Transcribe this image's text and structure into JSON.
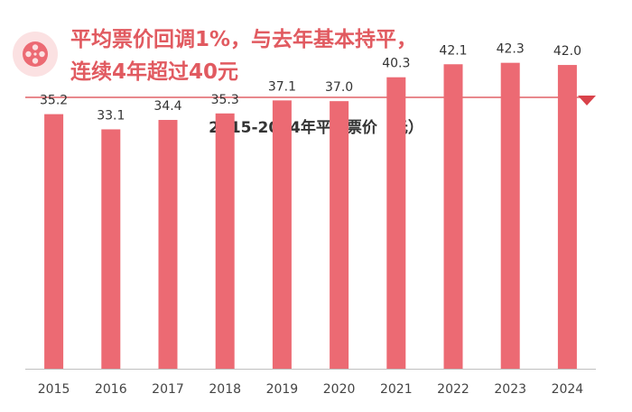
{
  "header": {
    "headline_line1": "平均票价回调1%，与去年基本持平，",
    "headline_line2": "连续4年超过40元",
    "icon": "film-reel-icon",
    "accent_color": "#e15a60"
  },
  "chart_data": {
    "type": "bar",
    "title": "2015-2024年平均票价（元）",
    "xlabel": "",
    "ylabel": "",
    "categories": [
      "2015",
      "2016",
      "2017",
      "2018",
      "2019",
      "2020",
      "2021",
      "2022",
      "2023",
      "2024"
    ],
    "values": [
      35.2,
      33.1,
      34.4,
      35.3,
      37.1,
      37.0,
      40.3,
      42.1,
      42.3,
      42.0
    ],
    "labels": [
      "35.2",
      "33.1",
      "34.4",
      "35.3",
      "37.1",
      "37.0",
      "40.3",
      "42.1",
      "42.3",
      "42.0"
    ],
    "ylim": [
      0,
      45
    ],
    "bar_color": "#ec6a73",
    "grid": false,
    "legend": "none"
  }
}
